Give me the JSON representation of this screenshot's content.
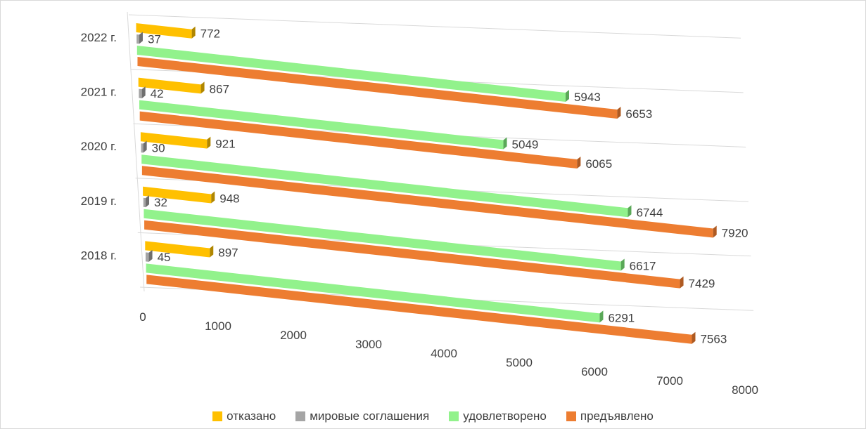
{
  "chart_data": {
    "type": "bar",
    "orientation": "horizontal",
    "style": "3d",
    "categories": [
      "2022 г.",
      "2021 г.",
      "2020 г.",
      "2019 г.",
      "2018 г."
    ],
    "series": [
      {
        "name": "отказано",
        "color": "#ffc000",
        "values": [
          772,
          867,
          921,
          948,
          897
        ]
      },
      {
        "name": "мировые соглашения",
        "color": "#a5a5a5",
        "values": [
          37,
          42,
          30,
          32,
          45
        ]
      },
      {
        "name": "удовлетворено",
        "color": "#92f28c",
        "values": [
          5943,
          5049,
          6744,
          6617,
          6291
        ]
      },
      {
        "name": "предъявлено",
        "color": "#ed7d31",
        "values": [
          6653,
          6065,
          7920,
          7429,
          7563
        ]
      }
    ],
    "xlim": [
      0,
      8000
    ],
    "x_ticks": [
      "0",
      "1000",
      "2000",
      "3000",
      "4000",
      "5000",
      "6000",
      "7000",
      "8000"
    ],
    "grid": true,
    "legend_position": "bottom"
  }
}
